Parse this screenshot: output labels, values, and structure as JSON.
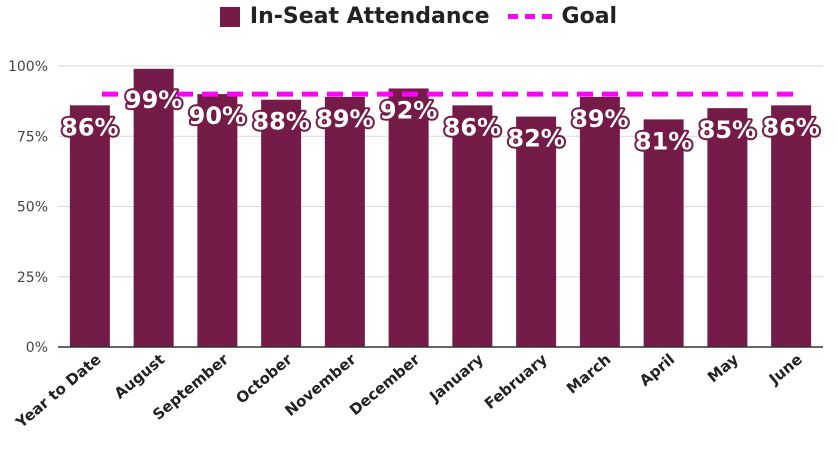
{
  "chart_data": {
    "type": "bar",
    "categories": [
      "Year to Date",
      "August",
      "September",
      "October",
      "November",
      "December",
      "January",
      "February",
      "March",
      "April",
      "May",
      "June"
    ],
    "series": [
      {
        "name": "In-Seat Attendance",
        "values": [
          86,
          99,
          90,
          88,
          89,
          92,
          86,
          82,
          89,
          81,
          85,
          86
        ],
        "color": "#741b47"
      },
      {
        "name": "Goal",
        "values": [
          90,
          90,
          90,
          90,
          90,
          90,
          90,
          90,
          90,
          90,
          90,
          90
        ],
        "color": "#ff00ff",
        "style": "dashed-line"
      }
    ],
    "data_labels": [
      "86%",
      "99%",
      "90%",
      "88%",
      "89%",
      "92%",
      "86%",
      "82%",
      "89%",
      "81%",
      "85%",
      "86%"
    ],
    "y_ticks": [
      "0%",
      "25%",
      "50%",
      "75%",
      "100%"
    ],
    "y_tick_values": [
      0,
      25,
      50,
      75,
      100
    ],
    "ylim": [
      0,
      100
    ],
    "grid": true,
    "legend_position": "top-center"
  }
}
